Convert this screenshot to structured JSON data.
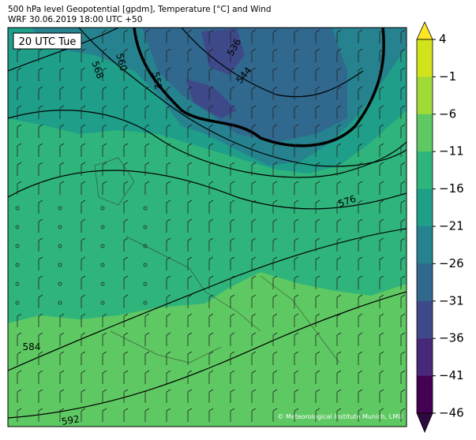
{
  "header": {
    "line1": "500 hPa level Geopotential [gpdm], Temperature [°C] and Wind",
    "line2": "WRF 30.06.2019 18:00 UTC +50"
  },
  "time_label": "20 UTC Tue",
  "contour_labels": [
    "568",
    "560",
    "552",
    "536",
    "544",
    "576",
    "584",
    "592"
  ],
  "credit": "© Meteorological Institute Munich, LMU",
  "colorbar": {
    "ticks": [
      "4",
      "−1",
      "−6",
      "−11",
      "−16",
      "−21",
      "−26",
      "−31",
      "−36",
      "−41",
      "−46"
    ],
    "colors": [
      "#d2e21b",
      "#a0da39",
      "#5ec962",
      "#2fb47c",
      "#1f9e89",
      "#26828e",
      "#31688e",
      "#3e4989",
      "#482878",
      "#440154"
    ]
  }
}
